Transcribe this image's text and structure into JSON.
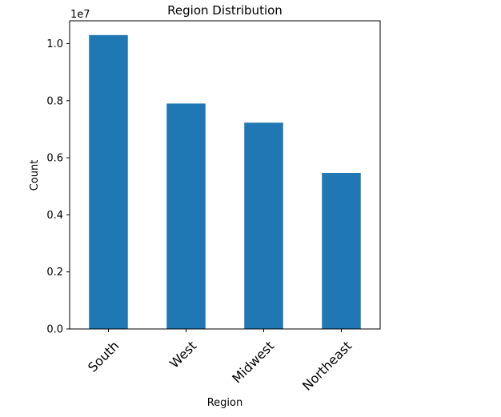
{
  "chart_data": {
    "type": "bar",
    "title": "Region Distribution",
    "xlabel": "Region",
    "ylabel": "Count",
    "offset_label": "1e7",
    "categories": [
      "South",
      "West",
      "Midwest",
      "Northeast"
    ],
    "values": [
      10300000,
      7900000,
      7230000,
      5470000
    ],
    "yticks": [
      0.0,
      0.2,
      0.4,
      0.6,
      0.8,
      1.0
    ],
    "ytick_labels": [
      "0.0",
      "0.2",
      "0.4",
      "0.6",
      "0.8",
      "1.0"
    ],
    "ylim": [
      0,
      10800000
    ],
    "bar_color": "#1f77b4",
    "grid": false,
    "legend": "none"
  }
}
